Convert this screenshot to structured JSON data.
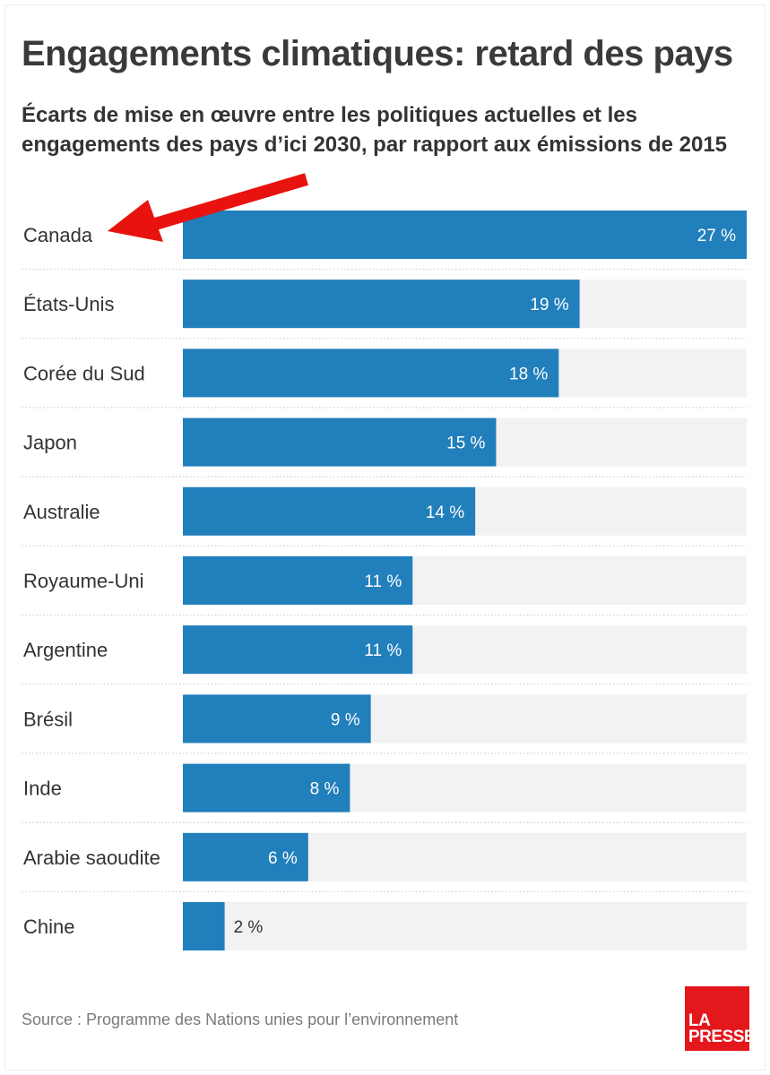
{
  "header": {
    "title": "Engagements climatiques: retard des pays",
    "subtitle": "Écarts de mise en œuvre entre les politiques actuelles et les engagements des pays d’ici 2030, par rapport aux émissions de 2015"
  },
  "chart_data": {
    "type": "bar",
    "orientation": "horizontal",
    "title": "Engagements climatiques: retard des pays",
    "subtitle": "Écarts de mise en œuvre entre les politiques actuelles et les engagements des pays d’ici 2030, par rapport aux émissions de 2015",
    "categories": [
      "Canada",
      "États-Unis",
      "Corée du Sud",
      "Japon",
      "Australie",
      "Royaume-Uni",
      "Argentine",
      "Brésil",
      "Inde",
      "Arabie saoudite",
      "Chine"
    ],
    "values": [
      27,
      19,
      18,
      15,
      14,
      11,
      11,
      9,
      8,
      6,
      2
    ],
    "value_labels": [
      "27 %",
      "19 %",
      "18 %",
      "15 %",
      "14 %",
      "11 %",
      "11 %",
      "9 %",
      "8 %",
      "6 %",
      "2 %"
    ],
    "xlim": [
      0,
      27
    ],
    "bar_color": "#217fbb",
    "track_color": "#f2f2f2",
    "highlight_color": "#e8130f",
    "grid": false
  },
  "footer": {
    "source": "Source : Programme des Nations unies pour l’environnement",
    "logo_line1": "LA",
    "logo_line2": "PRESSE"
  },
  "colors": {
    "logo_red": "#e4171c"
  }
}
